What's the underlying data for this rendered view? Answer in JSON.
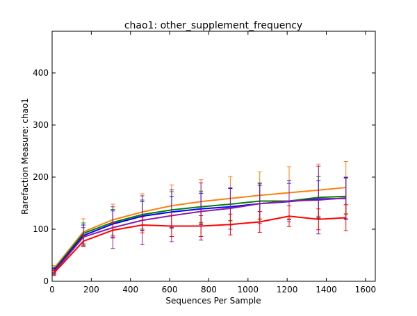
{
  "chart_data": {
    "type": "line",
    "title": "chao1: other_supplement_frequency",
    "xlabel": "Sequences Per Sample",
    "ylabel": "Rarefaction Measure: chao1",
    "xlim": [
      0,
      1650
    ],
    "ylim": [
      0,
      480
    ],
    "x_ticks": [
      0,
      200,
      400,
      600,
      800,
      1000,
      1200,
      1400,
      1600
    ],
    "y_ticks": [
      0,
      100,
      200,
      300,
      400
    ],
    "grid": false,
    "legend": "none",
    "x": [
      10,
      160,
      310,
      460,
      610,
      760,
      910,
      1060,
      1210,
      1360,
      1500
    ],
    "series": [
      {
        "color": "#ff7f0e",
        "values": [
          25,
          95,
          118,
          133,
          145,
          153,
          159,
          165,
          170,
          175,
          180
        ],
        "err": [
          5,
          25,
          30,
          35,
          40,
          42,
          42,
          45,
          50,
          50,
          50
        ]
      },
      {
        "color": "#008000",
        "values": [
          22,
          92,
          113,
          128,
          137,
          143,
          148,
          154,
          154,
          161,
          163
        ],
        "err": [
          5,
          20,
          25,
          28,
          35,
          30,
          32,
          35,
          40,
          40,
          35
        ]
      },
      {
        "color": "#0000ff",
        "values": [
          20,
          88,
          110,
          125,
          133,
          139,
          143,
          149,
          153,
          158,
          159
        ],
        "err": [
          5,
          20,
          25,
          28,
          30,
          30,
          35,
          35,
          35,
          35,
          40
        ]
      },
      {
        "color": "#8e1e9e",
        "values": [
          18,
          85,
          103,
          117,
          126,
          134,
          140,
          149,
          154,
          156,
          160
        ],
        "err": [
          5,
          18,
          40,
          47,
          50,
          55,
          40,
          38,
          40,
          65,
          40
        ]
      },
      {
        "color": "#ff0000",
        "values": [
          16,
          77,
          98,
          108,
          106,
          106,
          109,
          114,
          125,
          119,
          122
        ],
        "err": [
          5,
          10,
          15,
          15,
          20,
          20,
          20,
          20,
          20,
          20,
          25
        ]
      }
    ]
  }
}
